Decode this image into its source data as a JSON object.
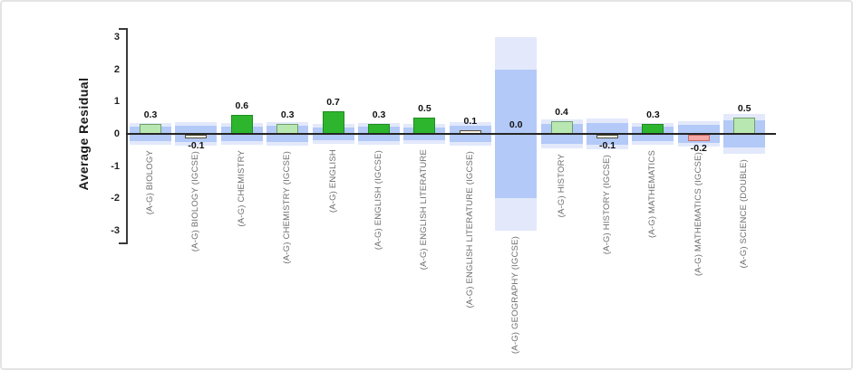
{
  "chart_data": {
    "type": "bar",
    "title": "",
    "ylabel": "Average Residual",
    "xlabel": "",
    "ylim": [
      -3,
      3
    ],
    "yticks": [
      3,
      2,
      1,
      0,
      -1,
      -2,
      -3
    ],
    "grid": false,
    "legend": "none",
    "categories": [
      "(A-G) BIOLOGY",
      "(A-G) BIOLOGY (IGCSE)",
      "(A-G) CHEMISTRY",
      "(A-G) CHEMISTRY (IGCSE)",
      "(A-G) ENGLISH",
      "(A-G) ENGLISH (IGCSE)",
      "(A-G) ENGLISH LITERATURE",
      "(A-G) ENGLISH LITERATURE (IGCSE)",
      "(A-G) GEOGRAPHY (IGCSE)",
      "(A-G) HISTORY",
      "(A-G) HISTORY (IGCSE)",
      "(A-G) MATHEMATICS",
      "(A-G) MATHEMATICS (IGCSE)",
      "(A-G) SCIENCE (DOUBLE)"
    ],
    "values": [
      0.3,
      -0.1,
      0.6,
      0.3,
      0.7,
      0.3,
      0.5,
      0.1,
      0.0,
      0.4,
      -0.1,
      0.3,
      -0.2,
      0.5
    ],
    "value_labels": [
      "0.3",
      "-0.1",
      "0.6",
      "0.3",
      "0.7",
      "0.3",
      "0.5",
      "0.1",
      "0.0",
      "0.4",
      "-0.1",
      "0.3",
      "-0.2",
      "0.5"
    ],
    "bar_styles": [
      "light_green",
      "neutral",
      "dark_green",
      "light_green",
      "dark_green",
      "dark_green",
      "dark_green",
      "neutral",
      "none",
      "light_green",
      "neutral",
      "dark_green",
      "pink",
      "light_green"
    ],
    "confidence_bands": [
      {
        "inner": 0.22,
        "outer": 0.33
      },
      {
        "inner": 0.25,
        "outer": 0.37
      },
      {
        "inner": 0.22,
        "outer": 0.33
      },
      {
        "inner": 0.25,
        "outer": 0.37
      },
      {
        "inner": 0.2,
        "outer": 0.31
      },
      {
        "inner": 0.23,
        "outer": 0.34
      },
      {
        "inner": 0.2,
        "outer": 0.31
      },
      {
        "inner": 0.25,
        "outer": 0.37
      },
      {
        "inner": 2.0,
        "outer": 3.0
      },
      {
        "inner": 0.32,
        "outer": 0.46
      },
      {
        "inner": 0.33,
        "outer": 0.48
      },
      {
        "inner": 0.23,
        "outer": 0.34
      },
      {
        "inner": 0.28,
        "outer": 0.4
      },
      {
        "inner": 0.43,
        "outer": 0.62
      }
    ],
    "colors": {
      "band_inner": "#b3c9f7",
      "band_outer": "#e3e9fb",
      "light_green_fill": "#b9e7b2",
      "light_green_border": "#6fa06a",
      "dark_green_fill": "#2eb52e",
      "dark_green_border": "#1f8c1f",
      "pink_fill": "#f5a8a5",
      "pink_border": "#c96a66",
      "neutral_fill": "#f7f3e8",
      "neutral_border": "#55503e",
      "axis": "#3a3a3a",
      "zero_line": "#252525",
      "value_label": "#111111",
      "tick_label": "#222222",
      "category_label": "#6e6e6e"
    }
  }
}
